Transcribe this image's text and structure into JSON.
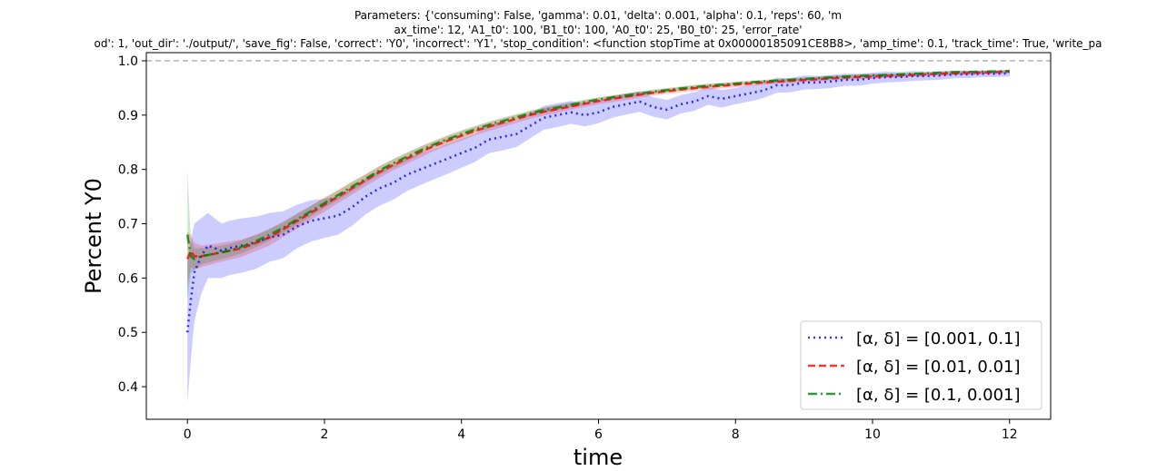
{
  "chart_data": {
    "type": "line",
    "title_lines": [
      "Parameters: {'consuming': False, 'gamma': 0.01, 'delta': 0.001, 'alpha': 0.1, 'reps': 60, 'm",
      "ax_time': 12, 'A1_t0': 100, 'B1_t0': 100, 'A0_t0': 25, 'B0_t0': 25, 'error_rate'",
      "od': 1, 'out_dir': './output/', 'save_fig': False, 'correct': 'Y0', 'incorrect': 'Y1', 'stop_condition': <function stopTime at 0x00000185091CE8B8>, 'amp_time': 0.1, 'track_time': True, 'write_pa"
    ],
    "xlabel": "time",
    "ylabel": "Percent Y0",
    "xlim": [
      -0.6,
      12.6
    ],
    "ylim": [
      0.34,
      1.015
    ],
    "xticks": [
      0,
      2,
      4,
      6,
      8,
      10,
      12
    ],
    "yticks": [
      0.4,
      0.5,
      0.6,
      0.7,
      0.8,
      0.9,
      1.0
    ],
    "xtick_labels": [
      "0",
      "2",
      "4",
      "6",
      "8",
      "10",
      "12"
    ],
    "ytick_labels": [
      "0.4",
      "0.5",
      "0.6",
      "0.7",
      "0.8",
      "0.9",
      "1.0"
    ],
    "reference_line": {
      "y": 1.0,
      "style": "dashed",
      "color": "#b0b0b0"
    },
    "legend_position": "lower-right",
    "series": [
      {
        "name": "[α, δ] = [0.001, 0.1]",
        "color": "#0000ff",
        "style": "dotted",
        "x": [
          0,
          0.05,
          0.1,
          0.2,
          0.3,
          0.4,
          0.5,
          0.6,
          0.8,
          1.0,
          1.2,
          1.4,
          1.6,
          1.8,
          2.0,
          2.2,
          2.4,
          2.6,
          2.8,
          3.0,
          3.2,
          3.4,
          3.6,
          3.8,
          4.0,
          4.2,
          4.4,
          4.6,
          4.8,
          5.0,
          5.2,
          5.4,
          5.6,
          5.8,
          6.0,
          6.2,
          6.4,
          6.6,
          6.8,
          7.0,
          7.2,
          7.4,
          7.6,
          7.8,
          8.0,
          8.2,
          8.4,
          8.6,
          8.8,
          9.0,
          9.2,
          9.4,
          9.6,
          9.8,
          10.0,
          10.2,
          10.4,
          10.6,
          10.8,
          11.0,
          11.2,
          11.4,
          11.6,
          11.8,
          12.0
        ],
        "y": [
          0.5,
          0.56,
          0.61,
          0.64,
          0.66,
          0.655,
          0.65,
          0.655,
          0.66,
          0.665,
          0.675,
          0.68,
          0.695,
          0.705,
          0.71,
          0.715,
          0.73,
          0.75,
          0.765,
          0.775,
          0.79,
          0.8,
          0.81,
          0.82,
          0.83,
          0.84,
          0.855,
          0.86,
          0.865,
          0.88,
          0.895,
          0.9,
          0.905,
          0.9,
          0.905,
          0.915,
          0.92,
          0.925,
          0.915,
          0.91,
          0.92,
          0.925,
          0.935,
          0.93,
          0.935,
          0.94,
          0.945,
          0.955,
          0.955,
          0.96,
          0.96,
          0.962,
          0.965,
          0.965,
          0.968,
          0.97,
          0.97,
          0.972,
          0.972,
          0.973,
          0.975,
          0.975,
          0.976,
          0.976,
          0.977
        ],
        "band": [
          0.13,
          0.11,
          0.09,
          0.07,
          0.06,
          0.055,
          0.05,
          0.05,
          0.05,
          0.048,
          0.045,
          0.043,
          0.04,
          0.038,
          0.036,
          0.035,
          0.034,
          0.033,
          0.032,
          0.031,
          0.03,
          0.029,
          0.028,
          0.028,
          0.027,
          0.026,
          0.025,
          0.025,
          0.024,
          0.023,
          0.022,
          0.022,
          0.021,
          0.021,
          0.02,
          0.02,
          0.019,
          0.019,
          0.018,
          0.018,
          0.017,
          0.017,
          0.016,
          0.016,
          0.015,
          0.015,
          0.014,
          0.014,
          0.013,
          0.013,
          0.012,
          0.012,
          0.011,
          0.011,
          0.01,
          0.01,
          0.009,
          0.009,
          0.008,
          0.008,
          0.007,
          0.007,
          0.006,
          0.006,
          0.006
        ]
      },
      {
        "name": "[α, δ] = [0.01, 0.01]",
        "color": "#ff0000",
        "style": "dashed",
        "x": [
          0,
          0.05,
          0.1,
          0.2,
          0.4,
          0.6,
          0.8,
          1.0,
          1.2,
          1.4,
          1.6,
          1.8,
          2.0,
          2.2,
          2.4,
          2.6,
          2.8,
          3.0,
          3.2,
          3.4,
          3.6,
          3.8,
          4.0,
          4.2,
          4.4,
          4.6,
          4.8,
          5.0,
          5.2,
          5.4,
          5.6,
          5.8,
          6.0,
          6.4,
          6.8,
          7.2,
          7.6,
          8.0,
          8.4,
          8.8,
          9.2,
          9.6,
          10.0,
          10.4,
          10.8,
          11.2,
          11.6,
          12.0
        ],
        "y": [
          0.635,
          0.65,
          0.64,
          0.64,
          0.645,
          0.65,
          0.655,
          0.665,
          0.675,
          0.69,
          0.705,
          0.72,
          0.735,
          0.75,
          0.765,
          0.78,
          0.795,
          0.808,
          0.82,
          0.832,
          0.843,
          0.853,
          0.862,
          0.871,
          0.879,
          0.886,
          0.893,
          0.9,
          0.906,
          0.911,
          0.916,
          0.921,
          0.926,
          0.934,
          0.941,
          0.947,
          0.952,
          0.956,
          0.96,
          0.963,
          0.966,
          0.969,
          0.971,
          0.973,
          0.975,
          0.977,
          0.978,
          0.98
        ],
        "band": [
          0.05,
          0.03,
          0.025,
          0.02,
          0.018,
          0.017,
          0.016,
          0.015,
          0.015,
          0.014,
          0.014,
          0.013,
          0.013,
          0.012,
          0.012,
          0.011,
          0.011,
          0.01,
          0.01,
          0.01,
          0.009,
          0.009,
          0.009,
          0.008,
          0.008,
          0.008,
          0.007,
          0.007,
          0.007,
          0.007,
          0.006,
          0.006,
          0.006,
          0.006,
          0.005,
          0.005,
          0.005,
          0.005,
          0.004,
          0.004,
          0.004,
          0.004,
          0.004,
          0.003,
          0.003,
          0.003,
          0.003,
          0.003
        ]
      },
      {
        "name": "[α, δ] = [0.1, 0.001]",
        "color": "#008000",
        "style": "dashdot",
        "x": [
          0,
          0.05,
          0.1,
          0.2,
          0.4,
          0.6,
          0.8,
          1.0,
          1.2,
          1.4,
          1.6,
          1.8,
          2.0,
          2.2,
          2.4,
          2.6,
          2.8,
          3.0,
          3.2,
          3.4,
          3.6,
          3.8,
          4.0,
          4.2,
          4.4,
          4.6,
          4.8,
          5.0,
          5.2,
          5.4,
          5.6,
          5.8,
          6.0,
          6.4,
          6.8,
          7.2,
          7.6,
          8.0,
          8.4,
          8.8,
          9.2,
          9.6,
          10.0,
          10.4,
          10.8,
          11.2,
          11.6,
          12.0
        ],
        "y": [
          0.68,
          0.64,
          0.635,
          0.64,
          0.645,
          0.65,
          0.658,
          0.668,
          0.68,
          0.693,
          0.708,
          0.723,
          0.738,
          0.753,
          0.768,
          0.783,
          0.798,
          0.811,
          0.823,
          0.835,
          0.846,
          0.856,
          0.865,
          0.874,
          0.882,
          0.889,
          0.896,
          0.903,
          0.909,
          0.914,
          0.919,
          0.924,
          0.929,
          0.936,
          0.943,
          0.949,
          0.954,
          0.958,
          0.962,
          0.965,
          0.968,
          0.971,
          0.973,
          0.975,
          0.977,
          0.979,
          0.98,
          0.981
        ],
        "band": [
          0.12,
          0.03,
          0.02,
          0.015,
          0.013,
          0.012,
          0.012,
          0.011,
          0.011,
          0.01,
          0.01,
          0.01,
          0.009,
          0.009,
          0.009,
          0.008,
          0.008,
          0.008,
          0.008,
          0.007,
          0.007,
          0.007,
          0.007,
          0.006,
          0.006,
          0.006,
          0.006,
          0.005,
          0.005,
          0.005,
          0.005,
          0.005,
          0.004,
          0.004,
          0.004,
          0.004,
          0.004,
          0.003,
          0.003,
          0.003,
          0.003,
          0.003,
          0.003,
          0.002,
          0.002,
          0.002,
          0.002,
          0.002
        ]
      }
    ]
  }
}
